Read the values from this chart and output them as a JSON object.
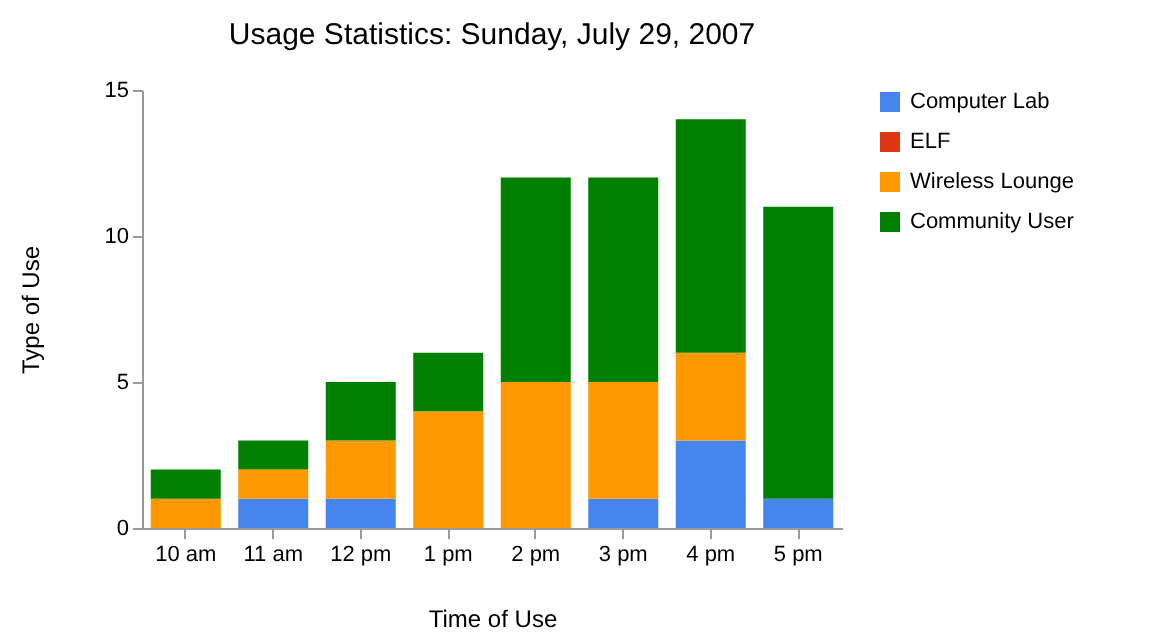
{
  "chart_data": {
    "type": "bar",
    "title": "Usage Statistics: Sunday, July 29, 2007",
    "xlabel": "Time of Use",
    "ylabel": "Type of Use",
    "categories": [
      "10 am",
      "11 am",
      "12 pm",
      "1 pm",
      "2 pm",
      "3 pm",
      "4 pm",
      "5 pm"
    ],
    "stacked": true,
    "series": [
      {
        "name": "Computer Lab",
        "color": "#4684ee",
        "values": [
          0,
          1,
          1,
          0,
          0,
          1,
          3,
          1
        ]
      },
      {
        "name": "ELF",
        "color": "#dc3912",
        "values": [
          0,
          0,
          0,
          0,
          0,
          0,
          0,
          0
        ]
      },
      {
        "name": "Wireless Lounge",
        "color": "#ff9900",
        "values": [
          1,
          1,
          2,
          4,
          5,
          4,
          3,
          0
        ]
      },
      {
        "name": "Community User",
        "color": "#008000",
        "values": [
          1,
          1,
          2,
          2,
          7,
          7,
          8,
          10
        ]
      }
    ],
    "ylim": [
      0,
      15
    ],
    "yticks": [
      0,
      5,
      10,
      15
    ],
    "legend": "right"
  }
}
